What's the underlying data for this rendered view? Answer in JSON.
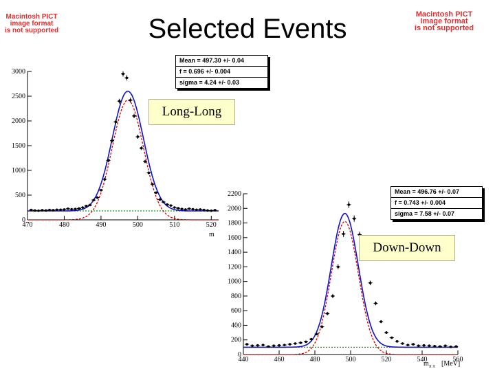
{
  "title": "Selected Events",
  "placeholders": {
    "left": [
      "Macintosh PICT",
      "image format",
      "is not supported"
    ],
    "right": [
      "Macintosh PICT",
      "image format",
      "is not supported"
    ]
  },
  "colors": {
    "data": "#000000",
    "total_fit": "#1010cc",
    "signal_fit": "#cc0000",
    "background_fit": "#00aa00",
    "label_bg": "#ffffcc",
    "placeholder_text": "#e03030"
  },
  "chart_data": [
    {
      "type": "scatter",
      "label": "Long-Long",
      "stats": {
        "mean": "Mean =  497.30 +/- 0.04",
        "f": "f =   0.696 +/- 0.004",
        "sigma": "sigma =   4.24 +/- 0.03"
      },
      "xlabel": "m",
      "xlim": [
        470,
        522
      ],
      "ylim": [
        0,
        3000
      ],
      "x_ticks": [
        470,
        480,
        490,
        500,
        510,
        520
      ],
      "y_ticks": [
        0,
        500,
        1000,
        1500,
        2000,
        2500,
        3000
      ],
      "x": [
        471,
        472,
        473,
        474,
        475,
        476,
        477,
        478,
        479,
        480,
        481,
        482,
        483,
        484,
        485,
        486,
        487,
        488,
        489,
        490,
        491,
        492,
        493,
        494,
        495,
        496,
        497,
        498,
        499,
        500,
        501,
        502,
        503,
        504,
        505,
        506,
        507,
        508,
        509,
        510,
        511,
        512,
        513,
        514,
        515,
        516,
        517,
        518,
        519,
        520,
        521
      ],
      "y": [
        200,
        190,
        185,
        195,
        190,
        200,
        195,
        205,
        205,
        210,
        225,
        215,
        220,
        230,
        250,
        280,
        300,
        400,
        450,
        600,
        820,
        1200,
        1600,
        1980,
        2400,
        2950,
        2870,
        2420,
        2100,
        1680,
        1450,
        1180,
        950,
        720,
        550,
        410,
        360,
        310,
        290,
        250,
        235,
        220,
        210,
        225,
        215,
        205,
        210,
        200,
        190,
        185,
        195
      ],
      "fit": {
        "mean": 497.3,
        "sigma": 4.24,
        "peak_total": 2600,
        "peak_signal": 2420,
        "background": 180
      }
    },
    {
      "type": "scatter",
      "label": "Down-Down",
      "stats": {
        "mean": "Mean =  496.76 +/- 0.07",
        "f": "f =   0.743 +/- 0.004",
        "sigma": "sigma =   7.58 +/- 0.07"
      },
      "xlabel": "m",
      "xlabel_sub": "π π",
      "xunit": "[MeV]",
      "xlim": [
        440,
        560
      ],
      "ylim": [
        0,
        2200
      ],
      "x_ticks": [
        440,
        460,
        480,
        500,
        520,
        540,
        560
      ],
      "y_ticks": [
        0,
        200,
        400,
        600,
        800,
        1000,
        1200,
        1400,
        1600,
        1800,
        2000,
        2200
      ],
      "x": [
        442,
        445,
        448,
        451,
        454,
        457,
        460,
        463,
        466,
        469,
        472,
        475,
        478,
        481,
        484,
        487,
        490,
        493,
        496,
        499,
        502,
        505,
        508,
        511,
        514,
        517,
        520,
        523,
        526,
        529,
        532,
        535,
        538,
        541,
        544,
        547,
        550,
        553,
        556,
        559
      ],
      "y": [
        140,
        120,
        125,
        130,
        110,
        120,
        125,
        130,
        140,
        150,
        160,
        175,
        210,
        280,
        380,
        560,
        800,
        1200,
        1650,
        2050,
        1860,
        1640,
        1320,
        980,
        700,
        450,
        300,
        230,
        180,
        150,
        130,
        140,
        120,
        125,
        120,
        115,
        110,
        120,
        105,
        110
      ],
      "fit": {
        "mean": 496.76,
        "sigma": 7.58,
        "peak_total": 1930,
        "peak_signal": 1820,
        "background": 100
      }
    }
  ]
}
